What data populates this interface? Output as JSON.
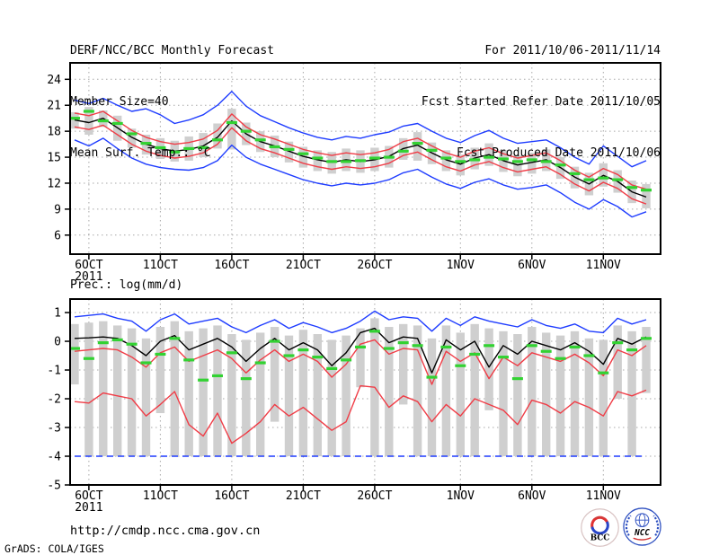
{
  "header": {
    "title": "DERF/NCC/BCC Monthly Forecast",
    "member_size": "Member Size=40",
    "variable": "Mean Surf. Temp.: °C",
    "for_range": "For 2011/10/06-2011/11/14",
    "refer_date": "Fcst Started Refer Date 2011/10/05",
    "produced_date": "Fcst Produced Date 2011/10/06"
  },
  "footer": {
    "url": "http://cmdp.ncc.cma.gov.cn",
    "stamp": "GrADS: COLA/IGES",
    "logos": [
      {
        "label": "BCC"
      },
      {
        "label": "NCC"
      }
    ]
  },
  "chart_data": [
    {
      "type": "line",
      "title": "Mean Surf. Temp.: °C",
      "ylabel": "°C",
      "ylim": [
        3.8,
        25.9
      ],
      "yticks": [
        24,
        21,
        18,
        15,
        12,
        9,
        6
      ],
      "x_year": "2011",
      "x_tick_labels": [
        "6OCT",
        "11OCT",
        "16OCT",
        "21OCT",
        "26OCT",
        "1NOV",
        "6NOV",
        "11NOV"
      ],
      "x_tick_days": [
        1,
        6,
        11,
        16,
        21,
        27,
        32,
        37
      ],
      "x_start": "5OCT2011",
      "x_end": "14NOV2011",
      "n_points": 41,
      "grid": true,
      "series": [
        {
          "name": "member-spread",
          "role": "bar",
          "color": "#cfcfcf",
          "high": [
            20.2,
            20.8,
            20.4,
            19.8,
            18.3,
            17.6,
            17.2,
            16.9,
            17.4,
            17.8,
            18.9,
            20.6,
            19.0,
            18.0,
            17.5,
            16.8,
            16.2,
            15.8,
            15.6,
            16.0,
            15.8,
            16.1,
            16.3,
            17.2,
            17.9,
            16.7,
            15.8,
            15.3,
            16.1,
            16.6,
            15.8,
            15.2,
            15.5,
            15.9,
            15.0,
            13.9,
            13.2,
            14.3,
            13.5,
            12.3,
            11.9
          ],
          "low": [
            18.3,
            17.6,
            18.5,
            16.9,
            16.1,
            15.3,
            14.8,
            14.5,
            14.6,
            15.0,
            16.0,
            15.9,
            16.4,
            15.6,
            15.0,
            14.4,
            13.8,
            13.4,
            13.1,
            13.4,
            13.2,
            13.4,
            13.8,
            14.7,
            14.6,
            14.2,
            13.4,
            12.9,
            13.6,
            14.0,
            13.3,
            12.8,
            13.1,
            13.4,
            12.5,
            11.4,
            10.6,
            11.6,
            10.9,
            9.7,
            9.1
          ]
        },
        {
          "name": "ensemble-max",
          "role": "line",
          "color": "#1e3cff",
          "values": [
            21.6,
            21.2,
            21.8,
            21.0,
            20.3,
            20.6,
            19.9,
            18.9,
            19.3,
            19.9,
            21.0,
            22.6,
            20.9,
            19.8,
            19.1,
            18.4,
            17.8,
            17.3,
            17.0,
            17.4,
            17.2,
            17.6,
            17.9,
            18.6,
            18.9,
            18.0,
            17.2,
            16.7,
            17.5,
            18.1,
            17.2,
            16.6,
            16.8,
            17.0,
            16.1,
            15.0,
            14.2,
            16.3,
            15.1,
            13.9,
            14.6
          ]
        },
        {
          "name": "ensemble-min",
          "role": "line",
          "color": "#1e3cff",
          "values": [
            17.0,
            16.3,
            17.2,
            16.0,
            14.9,
            14.2,
            13.8,
            13.6,
            13.5,
            13.8,
            14.6,
            16.4,
            15.0,
            14.2,
            13.6,
            13.0,
            12.4,
            12.0,
            11.7,
            12.0,
            11.8,
            12.0,
            12.4,
            13.2,
            13.6,
            12.7,
            11.9,
            11.4,
            12.1,
            12.5,
            11.8,
            11.3,
            11.5,
            11.8,
            10.9,
            9.8,
            9.0,
            10.1,
            9.3,
            8.1,
            8.7
          ]
        },
        {
          "name": "mean-plus-std",
          "role": "line",
          "color": "#f03c46",
          "values": [
            20.1,
            19.8,
            20.3,
            19.2,
            18.1,
            17.3,
            16.8,
            16.5,
            16.7,
            17.1,
            18.1,
            20.0,
            18.5,
            17.6,
            17.1,
            16.5,
            15.9,
            15.5,
            15.2,
            15.5,
            15.3,
            15.5,
            15.9,
            16.8,
            17.2,
            16.3,
            15.5,
            15.0,
            15.7,
            16.1,
            15.4,
            14.9,
            15.2,
            15.5,
            14.6,
            13.5,
            12.7,
            13.7,
            13.0,
            11.8,
            11.3
          ]
        },
        {
          "name": "mean-minus-std",
          "role": "line",
          "color": "#f03c46",
          "values": [
            18.5,
            18.2,
            18.7,
            17.6,
            16.5,
            15.7,
            15.2,
            14.9,
            15.1,
            15.5,
            16.5,
            18.4,
            16.9,
            16.0,
            15.5,
            14.9,
            14.3,
            13.9,
            13.6,
            13.9,
            13.7,
            13.9,
            14.3,
            15.2,
            15.6,
            14.7,
            13.9,
            13.4,
            14.1,
            14.5,
            13.8,
            13.3,
            13.6,
            13.9,
            13.0,
            11.9,
            11.1,
            12.1,
            11.4,
            10.2,
            9.6
          ]
        },
        {
          "name": "ensemble-mean",
          "role": "line",
          "color": "#000000",
          "values": [
            19.3,
            19.0,
            19.5,
            18.4,
            17.3,
            16.5,
            16.0,
            15.7,
            15.9,
            16.3,
            17.3,
            19.2,
            17.7,
            16.8,
            16.3,
            15.7,
            15.1,
            14.7,
            14.4,
            14.7,
            14.5,
            14.7,
            15.1,
            16.0,
            16.4,
            15.5,
            14.7,
            14.2,
            14.9,
            15.3,
            14.6,
            14.1,
            14.4,
            14.7,
            13.8,
            12.7,
            11.9,
            12.9,
            12.2,
            11.0,
            10.4
          ]
        },
        {
          "name": "observation",
          "role": "tick",
          "color": "#32d232",
          "values": [
            19.5,
            20.3,
            19.2,
            18.9,
            17.7,
            16.6,
            16.1,
            15.6,
            16.0,
            16.1,
            17.0,
            19.0,
            18.0,
            17.0,
            16.2,
            15.9,
            15.4,
            14.9,
            14.5,
            14.5,
            14.6,
            14.9,
            15.0,
            15.7,
            16.6,
            15.8,
            14.9,
            14.5,
            14.7,
            15.0,
            14.8,
            14.5,
            14.7,
            14.5,
            14.1,
            13.1,
            12.4,
            12.6,
            12.4,
            11.5,
            11.2
          ]
        }
      ]
    },
    {
      "type": "line",
      "title": "Prec.: log(mm/d)",
      "ylabel": "log(mm/d)",
      "ylim": [
        -5,
        1.47
      ],
      "yticks": [
        1,
        0,
        -1,
        -2,
        -3,
        -4,
        -5
      ],
      "x_year": "2011",
      "x_tick_labels": [
        "6OCT",
        "11OCT",
        "16OCT",
        "21OCT",
        "26OCT",
        "1NOV",
        "6NOV",
        "11NOV"
      ],
      "x_tick_days": [
        1,
        6,
        11,
        16,
        21,
        27,
        32,
        37
      ],
      "x_start": "5OCT2011",
      "x_end": "14NOV2011",
      "n_points": 41,
      "grid": true,
      "series": [
        {
          "name": "member-spread",
          "role": "bar",
          "color": "#cfcfcf",
          "high": [
            0.6,
            0.65,
            0.7,
            0.55,
            0.45,
            0.1,
            0.5,
            0.7,
            0.35,
            0.45,
            0.55,
            0.25,
            0.05,
            0.3,
            0.5,
            0.2,
            0.4,
            0.25,
            0.05,
            0.2,
            0.45,
            0.8,
            0.5,
            0.6,
            0.55,
            0.1,
            0.55,
            0.3,
            0.6,
            0.45,
            0.35,
            0.25,
            0.5,
            0.3,
            0.2,
            0.35,
            0.1,
            0.05,
            0.55,
            0.35,
            0.5
          ],
          "low": [
            -1.5,
            -4,
            -4,
            -4,
            -4,
            -4,
            -2.5,
            -4,
            -4,
            -4,
            -4,
            -4,
            -4,
            -4,
            -2.8,
            -4,
            -4,
            -4,
            -4,
            -4,
            -1.6,
            -4,
            -4,
            -2.2,
            -4,
            -4,
            -4,
            -4,
            -4,
            -2.4,
            -4,
            -4,
            -4,
            -4,
            -4,
            -4,
            -4,
            -4,
            -2.0,
            -4,
            -1.8
          ]
        },
        {
          "name": "ensemble-max",
          "role": "line",
          "color": "#1e3cff",
          "values": [
            0.85,
            0.9,
            0.95,
            0.8,
            0.7,
            0.35,
            0.75,
            0.95,
            0.6,
            0.7,
            0.8,
            0.5,
            0.3,
            0.55,
            0.75,
            0.45,
            0.65,
            0.5,
            0.3,
            0.45,
            0.7,
            1.05,
            0.75,
            0.85,
            0.8,
            0.35,
            0.8,
            0.55,
            0.85,
            0.7,
            0.6,
            0.5,
            0.75,
            0.55,
            0.45,
            0.6,
            0.35,
            0.3,
            0.8,
            0.6,
            0.75
          ]
        },
        {
          "name": "ensemble-min-floor",
          "role": "dashline",
          "color": "#1e3cff",
          "value": -4
        },
        {
          "name": "red-lower",
          "role": "line",
          "color": "#f03c46",
          "values": [
            -2.1,
            -2.15,
            -1.8,
            -1.9,
            -2.0,
            -2.6,
            -2.2,
            -1.75,
            -2.9,
            -3.3,
            -2.5,
            -3.55,
            -3.2,
            -2.8,
            -2.2,
            -2.6,
            -2.3,
            -2.7,
            -3.1,
            -2.8,
            -1.55,
            -1.6,
            -2.3,
            -1.9,
            -2.1,
            -2.8,
            -2.2,
            -2.6,
            -2.0,
            -2.2,
            -2.4,
            -2.9,
            -2.05,
            -2.2,
            -2.5,
            -2.1,
            -2.3,
            -2.6,
            -1.75,
            -1.9,
            -1.7
          ]
        },
        {
          "name": "red-upper",
          "role": "line",
          "color": "#f03c46",
          "values": [
            -0.35,
            -0.3,
            -0.25,
            -0.3,
            -0.55,
            -0.9,
            -0.4,
            -0.2,
            -0.7,
            -0.5,
            -0.3,
            -0.6,
            -1.1,
            -0.65,
            -0.3,
            -0.7,
            -0.45,
            -0.7,
            -1.25,
            -0.8,
            -0.1,
            0.05,
            -0.45,
            -0.25,
            -0.3,
            -1.5,
            -0.35,
            -0.7,
            -0.4,
            -1.3,
            -0.55,
            -0.85,
            -0.4,
            -0.55,
            -0.7,
            -0.45,
            -0.75,
            -1.2,
            -0.3,
            -0.5,
            -0.15
          ]
        },
        {
          "name": "ensemble-mean",
          "role": "line",
          "color": "#000000",
          "values": [
            0.1,
            0.12,
            0.15,
            0.1,
            -0.15,
            -0.5,
            0.0,
            0.2,
            -0.3,
            -0.1,
            0.1,
            -0.2,
            -0.7,
            -0.25,
            0.1,
            -0.3,
            -0.05,
            -0.3,
            -0.85,
            -0.4,
            0.3,
            0.45,
            -0.05,
            0.15,
            0.1,
            -1.1,
            0.05,
            -0.3,
            0.0,
            -0.9,
            -0.15,
            -0.45,
            0.0,
            -0.15,
            -0.3,
            -0.05,
            -0.35,
            -0.8,
            0.1,
            -0.1,
            0.15
          ]
        },
        {
          "name": "observation",
          "role": "tick",
          "color": "#32d232",
          "values": [
            -0.25,
            -0.6,
            -0.05,
            0.05,
            -0.1,
            -0.75,
            -0.45,
            0.1,
            -0.65,
            -1.35,
            -1.2,
            -0.4,
            -1.3,
            -0.75,
            0.0,
            -0.5,
            -0.3,
            -0.55,
            -0.95,
            -0.65,
            -0.2,
            0.35,
            -0.25,
            -0.05,
            -0.15,
            -1.25,
            -0.2,
            -0.85,
            -0.45,
            -0.15,
            -0.55,
            -1.3,
            -0.15,
            -0.35,
            -0.6,
            -0.2,
            -0.5,
            -1.1,
            -0.05,
            -0.3,
            0.1
          ]
        }
      ]
    }
  ]
}
